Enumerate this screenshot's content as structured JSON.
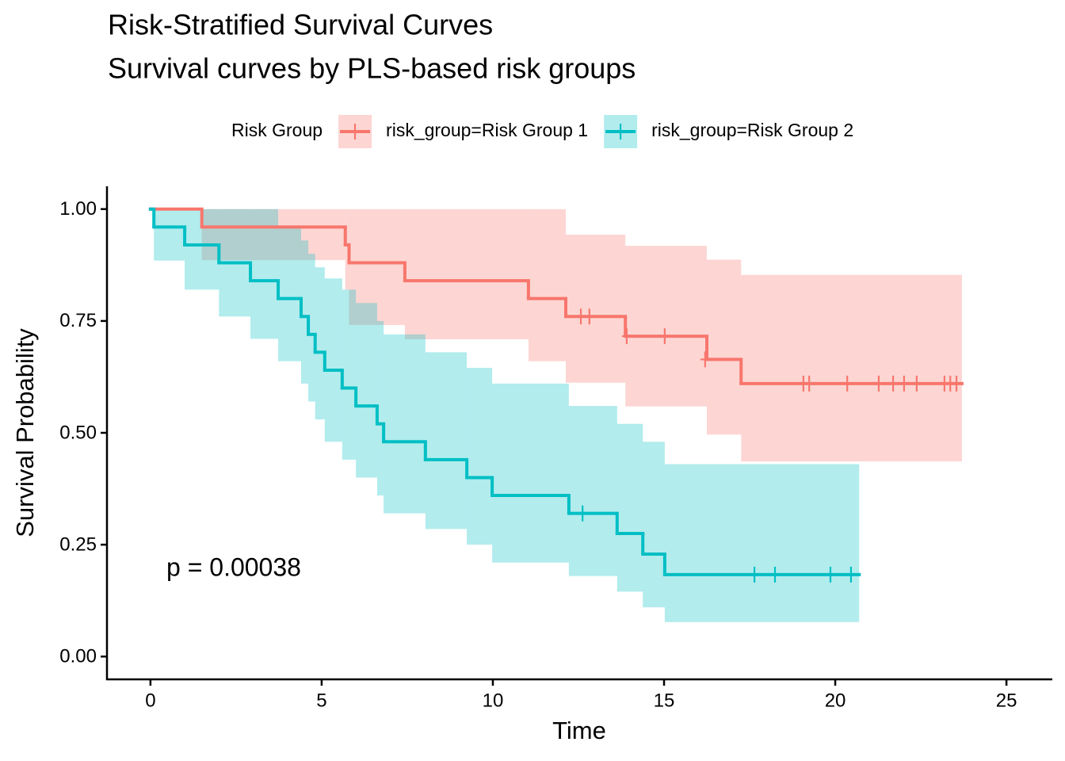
{
  "chart_data": {
    "type": "survival",
    "title": "Risk-Stratified Survival Curves",
    "subtitle": "Survival curves by PLS-based risk groups",
    "x_label": "Time",
    "y_label": "Survival Probability",
    "legend_title": "Risk Group",
    "legend_position": "top",
    "annotation": "p = 0.00038",
    "xlim": [
      -1.27,
      26.34
    ],
    "xticks": [
      0,
      5,
      10,
      15,
      20,
      25
    ],
    "ylim": [
      -0.051,
      1.051
    ],
    "yticks": [
      {
        "value": 0,
        "label": "0.00"
      },
      {
        "value": 0.25,
        "label": "0.25"
      },
      {
        "value": 0.5,
        "label": "0.50"
      },
      {
        "value": 0.75,
        "label": "0.75"
      },
      {
        "value": 1,
        "label": "1.00"
      }
    ],
    "series": [
      {
        "name": "risk_group=Risk Group 1",
        "color": "#F8766D",
        "x": [
          0,
          1.5,
          5.69,
          5.8,
          7.43,
          11.04,
          12.13,
          13.87,
          16.25,
          17.25,
          23.7
        ],
        "values": [
          1,
          0.96,
          0.92,
          0.88,
          0.84,
          0.8,
          0.76,
          0.716,
          0.664,
          0.61,
          0.61
        ],
        "lower": [
          1,
          0.886,
          0.82,
          0.741,
          0.709,
          0.66,
          0.612,
          0.559,
          0.496,
          0.436,
          0.436
        ],
        "upper": [
          1,
          1,
          1,
          1,
          1,
          1,
          0.943,
          0.918,
          0.887,
          0.853,
          0.853
        ],
        "censor_x": [
          12.57,
          12.82,
          13.91,
          15.02,
          16.2,
          19.07,
          19.24,
          20.35,
          21.27,
          21.69,
          22.01,
          22.38,
          23.19,
          23.36,
          23.54
        ],
        "censor_values": [
          0.76,
          0.76,
          0.716,
          0.716,
          0.664,
          0.61,
          0.61,
          0.61,
          0.61,
          0.61,
          0.61,
          0.61,
          0.61,
          0.61,
          0.61
        ]
      },
      {
        "name": "risk_group=Risk Group 2",
        "color": "#00BFC4",
        "x": [
          0,
          0.1,
          1.0,
          2.0,
          2.92,
          3.73,
          4.4,
          4.61,
          4.81,
          5.09,
          5.6,
          6.0,
          6.62,
          6.81,
          8.03,
          9.24,
          9.98,
          12.22,
          13.63,
          14.38,
          15.02,
          20.7
        ],
        "values": [
          1,
          0.96,
          0.92,
          0.88,
          0.84,
          0.8,
          0.76,
          0.72,
          0.68,
          0.64,
          0.6,
          0.56,
          0.52,
          0.48,
          0.44,
          0.4,
          0.36,
          0.32,
          0.275,
          0.229,
          0.183,
          0.183
        ],
        "lower": [
          1,
          0.885,
          0.82,
          0.76,
          0.71,
          0.66,
          0.61,
          0.57,
          0.53,
          0.48,
          0.44,
          0.4,
          0.36,
          0.32,
          0.285,
          0.25,
          0.21,
          0.18,
          0.145,
          0.11,
          0.077,
          0.077
        ],
        "upper": [
          1,
          1,
          1,
          1,
          1,
          0.96,
          0.93,
          0.9,
          0.87,
          0.845,
          0.82,
          0.79,
          0.75,
          0.72,
          0.68,
          0.645,
          0.61,
          0.56,
          0.52,
          0.48,
          0.43,
          0.43
        ],
        "censor_x": [
          12.62,
          17.64,
          18.24,
          19.86,
          20.46
        ],
        "censor_values": [
          0.32,
          0.183,
          0.183,
          0.183,
          0.183
        ]
      }
    ]
  }
}
